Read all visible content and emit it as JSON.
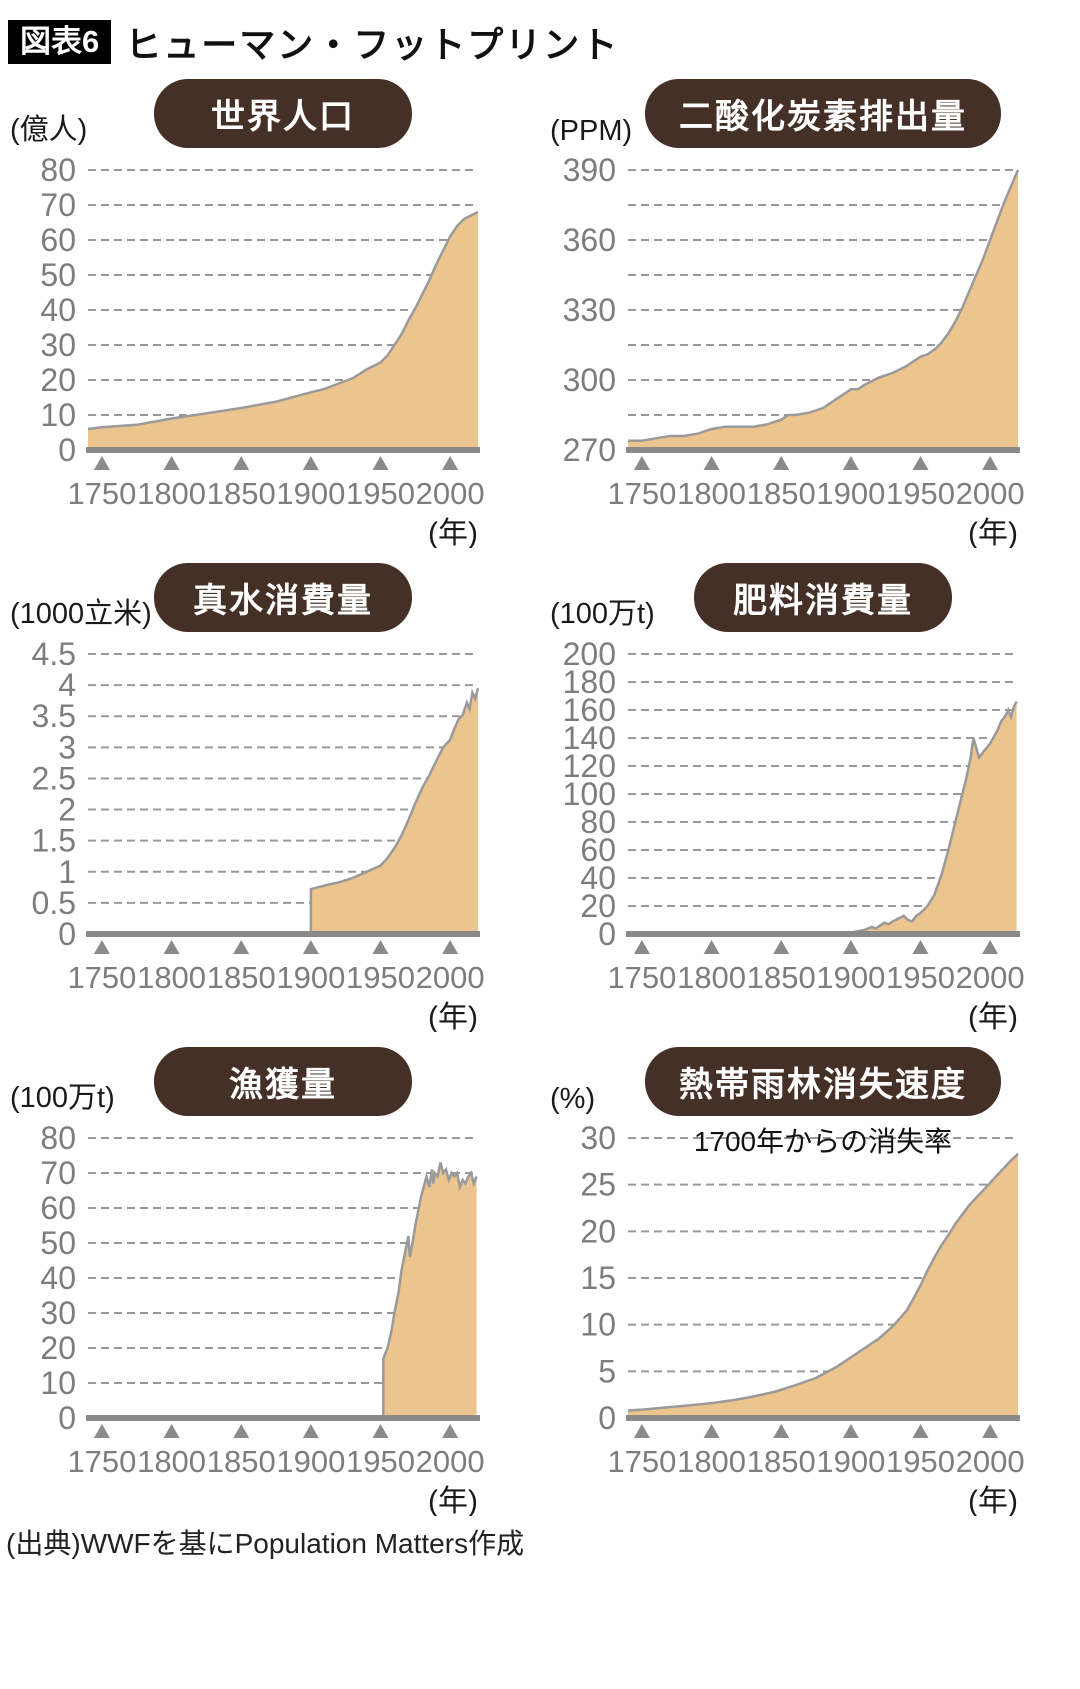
{
  "header": {
    "badge": "図表6",
    "title": "ヒューマン・フットプリント"
  },
  "footer": {
    "source": "(出典)WWFを基にPopulation Matters作成"
  },
  "colors": {
    "area_fill": "#ecc48e",
    "area_stroke": "#9a9a9a",
    "grid": "#999999",
    "axis": "#8a8a8a",
    "tick_text": "#7d7d7d",
    "year_text": "#1a1a1a",
    "pill_bg": "#453028",
    "pill_text": "#ffffff"
  },
  "chart_data": [
    {
      "type": "area",
      "title": "世界人口",
      "unit": "(億人)",
      "xlabel": "(年)",
      "xlim": [
        1740,
        2020
      ],
      "xticks": [
        1750,
        1800,
        1850,
        1900,
        1950,
        2000
      ],
      "ylim": [
        0,
        80
      ],
      "yticks": [
        0,
        10,
        20,
        30,
        40,
        50,
        60,
        70,
        80
      ],
      "gridlines": [
        10,
        20,
        30,
        40,
        50,
        60,
        70,
        80
      ],
      "x": [
        1740,
        1750,
        1775,
        1800,
        1825,
        1850,
        1875,
        1900,
        1910,
        1920,
        1930,
        1940,
        1950,
        1955,
        1960,
        1965,
        1970,
        1975,
        1980,
        1985,
        1990,
        1995,
        2000,
        2005,
        2010,
        2015,
        2020
      ],
      "values": [
        6,
        6.5,
        7.2,
        9,
        10.5,
        12,
        13.8,
        16.5,
        17.5,
        19,
        20.5,
        23,
        25,
        27,
        30,
        33,
        37,
        40.5,
        44.5,
        48.5,
        53,
        57,
        61,
        64,
        66,
        67,
        68
      ]
    },
    {
      "type": "area",
      "title": "二酸化炭素排出量",
      "unit": "(PPM)",
      "xlabel": "(年)",
      "xlim": [
        1740,
        2020
      ],
      "xticks": [
        1750,
        1800,
        1850,
        1900,
        1950,
        2000
      ],
      "ylim": [
        270,
        390
      ],
      "yticks": [
        270,
        300,
        330,
        360,
        390
      ],
      "gridlines": [
        285,
        300,
        315,
        330,
        345,
        360,
        375,
        390
      ],
      "x": [
        1740,
        1750,
        1760,
        1770,
        1780,
        1790,
        1800,
        1810,
        1820,
        1830,
        1840,
        1850,
        1855,
        1860,
        1870,
        1880,
        1885,
        1890,
        1895,
        1900,
        1905,
        1910,
        1920,
        1925,
        1930,
        1940,
        1945,
        1950,
        1955,
        1960,
        1965,
        1970,
        1975,
        1980,
        1985,
        1990,
        1995,
        2000,
        2005,
        2010,
        2015,
        2020
      ],
      "values": [
        274,
        274,
        275,
        276,
        276,
        277,
        279,
        280,
        280,
        280,
        281,
        283,
        285,
        285,
        286,
        288,
        290,
        292,
        294,
        296,
        296,
        298,
        301,
        302,
        303,
        306,
        308,
        310,
        311,
        313,
        316,
        320,
        325,
        331,
        338,
        345,
        352,
        360,
        368,
        376,
        383,
        390
      ]
    },
    {
      "type": "area",
      "title": "真水消費量",
      "unit": "(1000立米)",
      "xlabel": "(年)",
      "xlim": [
        1740,
        2020
      ],
      "xticks": [
        1750,
        1800,
        1850,
        1900,
        1950,
        2000
      ],
      "ylim": [
        0,
        4.5
      ],
      "yticks": [
        0,
        0.5,
        1,
        1.5,
        2,
        2.5,
        3,
        3.5,
        4,
        4.5
      ],
      "gridlines": [
        0.5,
        1,
        1.5,
        2,
        2.5,
        3,
        3.5,
        4,
        4.5
      ],
      "x": [
        1900,
        1905,
        1910,
        1920,
        1930,
        1940,
        1950,
        1955,
        1960,
        1965,
        1970,
        1975,
        1980,
        1985,
        1990,
        1995,
        2000,
        2003,
        2006,
        2009,
        2012,
        2014,
        2016,
        2018,
        2020
      ],
      "values": [
        0.72,
        0.75,
        0.78,
        0.83,
        0.9,
        1.0,
        1.1,
        1.22,
        1.38,
        1.58,
        1.83,
        2.1,
        2.35,
        2.55,
        2.78,
        3.0,
        3.12,
        3.3,
        3.45,
        3.52,
        3.72,
        3.62,
        3.88,
        3.78,
        3.95
      ]
    },
    {
      "type": "area",
      "title": "肥料消費量",
      "unit": "(100万t)",
      "xlabel": "(年)",
      "xlim": [
        1740,
        2020
      ],
      "xticks": [
        1750,
        1800,
        1850,
        1900,
        1950,
        2000
      ],
      "ylim": [
        0,
        200
      ],
      "yticks": [
        0,
        20,
        40,
        60,
        80,
        100,
        120,
        140,
        160,
        180,
        200
      ],
      "gridlines": [
        20,
        40,
        60,
        80,
        100,
        120,
        140,
        160,
        180,
        200
      ],
      "x": [
        1900,
        1905,
        1910,
        1915,
        1918,
        1921,
        1924,
        1927,
        1930,
        1934,
        1938,
        1941,
        1944,
        1947,
        1950,
        1955,
        1960,
        1965,
        1970,
        1975,
        1980,
        1983,
        1986,
        1988,
        1990,
        1992,
        1995,
        2000,
        2005,
        2008,
        2011,
        2013,
        2015,
        2017,
        2019
      ],
      "values": [
        1,
        2,
        3,
        5,
        4,
        6,
        8,
        7,
        9,
        11,
        13,
        10,
        9,
        13,
        15,
        20,
        28,
        42,
        60,
        80,
        100,
        112,
        126,
        140,
        133,
        126,
        130,
        136,
        145,
        152,
        156,
        160,
        155,
        162,
        166
      ]
    },
    {
      "type": "area",
      "title": "漁獲量",
      "unit": "(100万t)",
      "xlabel": "(年)",
      "xlim": [
        1740,
        2020
      ],
      "xticks": [
        1750,
        1800,
        1850,
        1900,
        1950,
        2000
      ],
      "ylim": [
        0,
        80
      ],
      "yticks": [
        0,
        10,
        20,
        30,
        40,
        50,
        60,
        70,
        80
      ],
      "gridlines": [
        10,
        20,
        30,
        40,
        50,
        60,
        70,
        80
      ],
      "x": [
        1952,
        1955,
        1958,
        1960,
        1963,
        1965,
        1967,
        1969,
        1970,
        1971,
        1973,
        1975,
        1977,
        1979,
        1981,
        1983,
        1985,
        1987,
        1988,
        1989,
        1991,
        1993,
        1995,
        1997,
        1999,
        2001,
        2003,
        2005,
        2007,
        2009,
        2011,
        2013,
        2015,
        2017,
        2019
      ],
      "values": [
        17,
        20,
        25,
        30,
        36,
        42,
        46,
        50,
        52,
        46,
        50,
        55,
        59,
        63,
        66,
        69,
        66,
        71,
        67,
        70,
        69,
        73,
        70,
        71,
        68,
        70,
        69,
        70,
        66,
        68,
        67,
        69,
        70,
        67,
        69
      ]
    },
    {
      "type": "area",
      "title": "熱帯雨林消失速度",
      "subtitle": "1700年からの消失率",
      "unit": "(%)",
      "xlabel": "(年)",
      "xlim": [
        1740,
        2020
      ],
      "xticks": [
        1750,
        1800,
        1850,
        1900,
        1950,
        2000
      ],
      "ylim": [
        0,
        30
      ],
      "yticks": [
        0,
        5,
        10,
        15,
        20,
        25,
        30
      ],
      "gridlines": [
        5,
        10,
        15,
        20,
        25,
        30
      ],
      "x": [
        1740,
        1750,
        1765,
        1780,
        1800,
        1815,
        1830,
        1845,
        1860,
        1875,
        1890,
        1900,
        1910,
        1920,
        1930,
        1940,
        1945,
        1950,
        1955,
        1960,
        1965,
        1970,
        1975,
        1980,
        1985,
        1990,
        1995,
        2000,
        2005,
        2010,
        2015,
        2020
      ],
      "values": [
        0.8,
        0.9,
        1.1,
        1.3,
        1.6,
        1.9,
        2.3,
        2.8,
        3.5,
        4.3,
        5.5,
        6.5,
        7.5,
        8.5,
        9.8,
        11.5,
        12.8,
        14.2,
        15.8,
        17.2,
        18.5,
        19.6,
        20.8,
        21.8,
        22.8,
        23.6,
        24.4,
        25.2,
        26,
        26.8,
        27.6,
        28.3
      ]
    }
  ]
}
